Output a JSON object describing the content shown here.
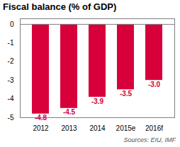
{
  "chart_data": {
    "type": "bar",
    "title": "Fiscal balance (% of GDP)",
    "categories": [
      "2012",
      "2013",
      "2014",
      "2015e",
      "2016f"
    ],
    "values": [
      -4.8,
      -4.5,
      -3.9,
      -3.5,
      -3.0
    ],
    "value_labels": [
      "-4.8",
      "-4.5",
      "-3.9",
      "-3.5",
      "-3.0"
    ],
    "data_labels": true,
    "color": "#d7003a",
    "ylim": [
      -5,
      0.3
    ],
    "yticks": [
      0,
      -1,
      -2,
      -3,
      -4,
      -5
    ],
    "annotations": [
      "Sources: EIU, IMF"
    ]
  }
}
